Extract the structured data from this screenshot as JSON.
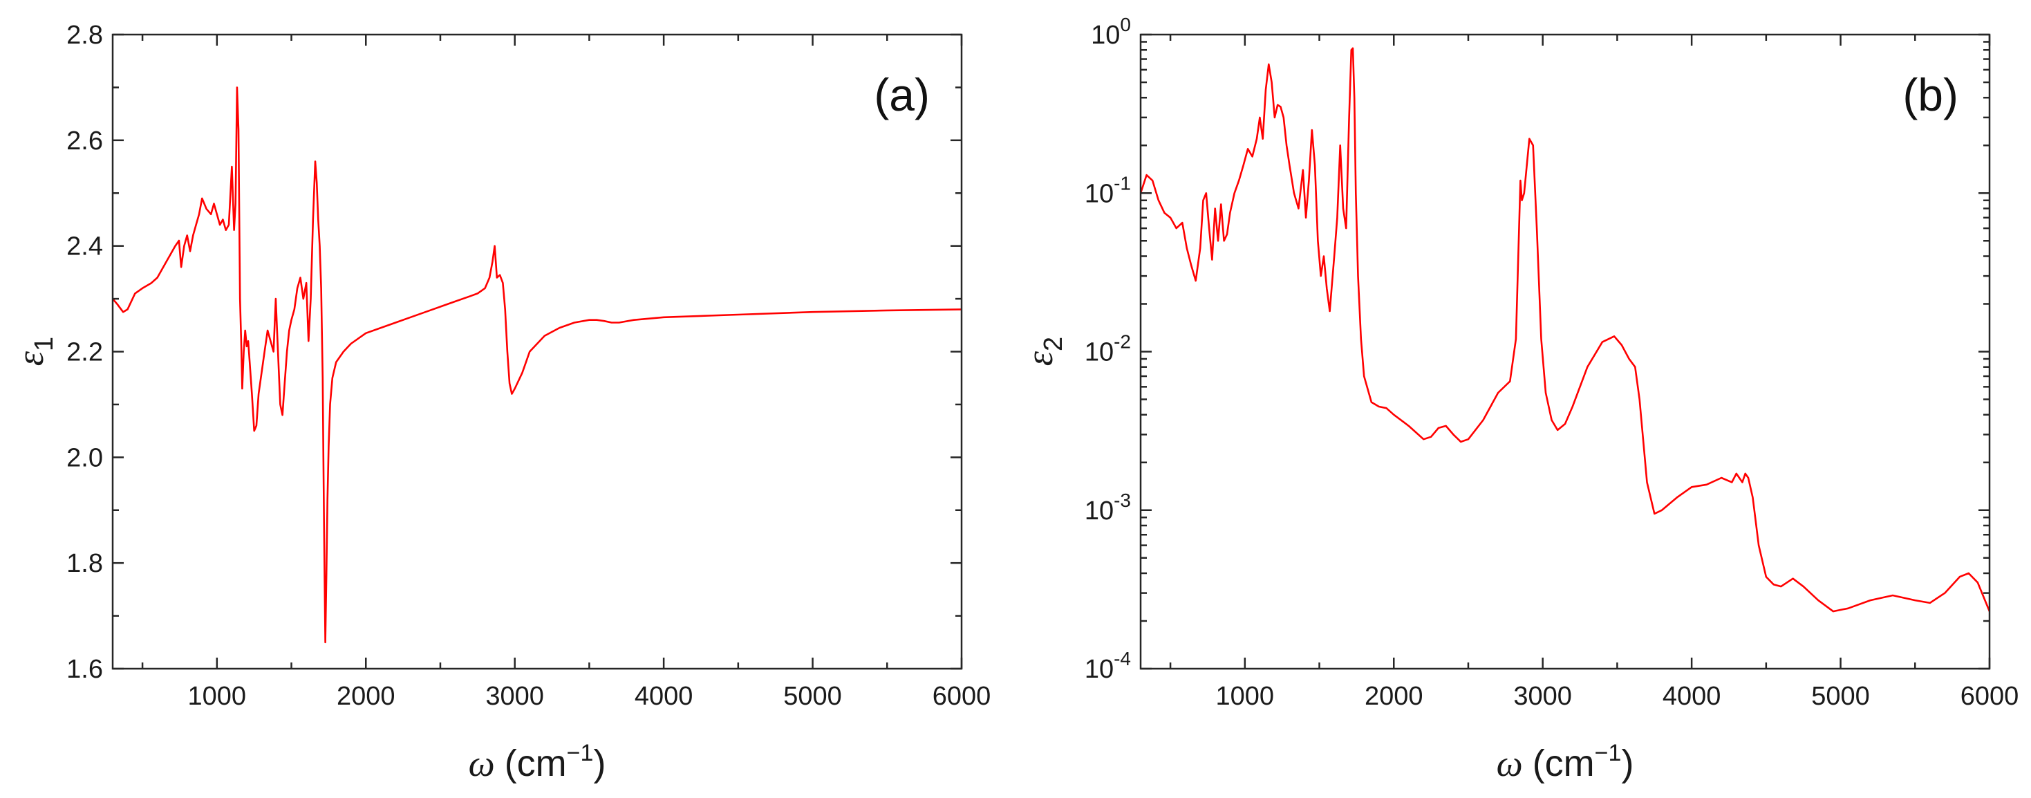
{
  "colors": {
    "series": "#ff0000",
    "axes": "#262626"
  },
  "chart_data": [
    {
      "type": "line",
      "panel_label": "(a)",
      "xlabel": {
        "symbol": "ω",
        "unit": "(cm",
        "exp": "−1",
        "close": ")"
      },
      "ylabel": {
        "symbol": "ε",
        "sub": "1"
      },
      "xlim": [
        300,
        6000
      ],
      "ylim": [
        1.6,
        2.8
      ],
      "yscale": "linear",
      "xticks": [
        1000,
        2000,
        3000,
        4000,
        5000,
        6000
      ],
      "xtick_labels": [
        "1000",
        "2000",
        "3000",
        "4000",
        "5000",
        "6000"
      ],
      "yticks": [
        1.6,
        1.8,
        2.0,
        2.2,
        2.4,
        2.6,
        2.8
      ],
      "ytick_labels": [
        "1.6",
        "1.8",
        "2.0",
        "2.2",
        "2.4",
        "2.6",
        "2.8"
      ],
      "grid": false,
      "legend": "none",
      "series": [
        {
          "x": [
            300,
            330,
            370,
            400,
            450,
            500,
            530,
            560,
            600,
            640,
            680,
            720,
            745,
            760,
            780,
            800,
            820,
            840,
            860,
            880,
            900,
            930,
            960,
            980,
            1000,
            1020,
            1040,
            1060,
            1080,
            1100,
            1115,
            1125,
            1135,
            1145,
            1155,
            1163,
            1170,
            1180,
            1190,
            1200,
            1210,
            1220,
            1235,
            1250,
            1265,
            1280,
            1300,
            1320,
            1340,
            1360,
            1380,
            1395,
            1410,
            1425,
            1440,
            1455,
            1470,
            1485,
            1500,
            1520,
            1540,
            1560,
            1580,
            1600,
            1615,
            1630,
            1645,
            1660,
            1670,
            1680,
            1690,
            1700,
            1710,
            1715,
            1720,
            1728,
            1735,
            1742,
            1750,
            1760,
            1775,
            1800,
            1850,
            1900,
            2000,
            2100,
            2200,
            2300,
            2400,
            2500,
            2600,
            2700,
            2750,
            2800,
            2830,
            2850,
            2865,
            2880,
            2900,
            2920,
            2935,
            2950,
            2965,
            2980,
            3000,
            3050,
            3100,
            3200,
            3300,
            3400,
            3500,
            3550,
            3600,
            3650,
            3700,
            3800,
            4000,
            4500,
            5000,
            5500,
            6000
          ],
          "y": [
            2.3,
            2.29,
            2.275,
            2.28,
            2.31,
            2.32,
            2.325,
            2.33,
            2.34,
            2.36,
            2.38,
            2.4,
            2.41,
            2.36,
            2.4,
            2.42,
            2.39,
            2.42,
            2.44,
            2.46,
            2.49,
            2.47,
            2.46,
            2.48,
            2.46,
            2.44,
            2.45,
            2.43,
            2.44,
            2.55,
            2.43,
            2.48,
            2.7,
            2.62,
            2.3,
            2.22,
            2.13,
            2.2,
            2.24,
            2.21,
            2.22,
            2.18,
            2.12,
            2.05,
            2.06,
            2.12,
            2.16,
            2.2,
            2.24,
            2.22,
            2.2,
            2.3,
            2.2,
            2.1,
            2.08,
            2.14,
            2.2,
            2.24,
            2.26,
            2.28,
            2.32,
            2.34,
            2.3,
            2.33,
            2.22,
            2.3,
            2.45,
            2.56,
            2.52,
            2.45,
            2.4,
            2.32,
            2.15,
            2.0,
            1.85,
            1.65,
            1.78,
            1.92,
            2.02,
            2.1,
            2.15,
            2.18,
            2.2,
            2.215,
            2.235,
            2.245,
            2.255,
            2.265,
            2.275,
            2.285,
            2.295,
            2.305,
            2.31,
            2.32,
            2.34,
            2.37,
            2.4,
            2.34,
            2.345,
            2.33,
            2.28,
            2.2,
            2.14,
            2.12,
            2.13,
            2.16,
            2.2,
            2.23,
            2.245,
            2.255,
            2.26,
            2.26,
            2.258,
            2.255,
            2.255,
            2.26,
            2.265,
            2.27,
            2.275,
            2.278,
            2.28
          ]
        }
      ]
    },
    {
      "type": "line",
      "panel_label": "(b)",
      "xlabel": {
        "symbol": "ω",
        "unit": "(cm",
        "exp": "−1",
        "close": ")"
      },
      "ylabel": {
        "symbol": "ε",
        "sub": "2"
      },
      "xlim": [
        300,
        6000
      ],
      "ylim": [
        0.0001,
        1
      ],
      "yscale": "log",
      "xticks": [
        1000,
        2000,
        3000,
        4000,
        5000,
        6000
      ],
      "xtick_labels": [
        "1000",
        "2000",
        "3000",
        "4000",
        "5000",
        "6000"
      ],
      "yticks": [
        0.0001,
        0.001,
        0.01,
        0.1,
        1
      ],
      "ytick_labels": [
        {
          "base": "10",
          "exp": "-4"
        },
        {
          "base": "10",
          "exp": "-3"
        },
        {
          "base": "10",
          "exp": "-2"
        },
        {
          "base": "10",
          "exp": "-1"
        },
        {
          "base": "10",
          "exp": "0"
        }
      ],
      "grid": false,
      "legend": "none",
      "series": [
        {
          "x": [
            300,
            340,
            380,
            420,
            460,
            500,
            540,
            580,
            610,
            640,
            670,
            700,
            720,
            740,
            760,
            780,
            800,
            820,
            840,
            860,
            880,
            900,
            930,
            960,
            990,
            1020,
            1050,
            1080,
            1100,
            1120,
            1140,
            1160,
            1180,
            1200,
            1220,
            1240,
            1260,
            1280,
            1300,
            1330,
            1360,
            1390,
            1410,
            1430,
            1450,
            1470,
            1490,
            1510,
            1530,
            1550,
            1570,
            1600,
            1620,
            1640,
            1660,
            1680,
            1700,
            1715,
            1725,
            1735,
            1745,
            1760,
            1780,
            1800,
            1850,
            1900,
            1950,
            2000,
            2100,
            2200,
            2250,
            2300,
            2350,
            2400,
            2450,
            2500,
            2600,
            2700,
            2780,
            2820,
            2850,
            2860,
            2875,
            2890,
            2910,
            2935,
            2960,
            2990,
            3020,
            3060,
            3100,
            3150,
            3200,
            3300,
            3400,
            3480,
            3530,
            3580,
            3620,
            3650,
            3700,
            3750,
            3800,
            3900,
            4000,
            4100,
            4200,
            4270,
            4300,
            4340,
            4360,
            4380,
            4410,
            4450,
            4500,
            4550,
            4600,
            4680,
            4750,
            4850,
            4950,
            5050,
            5200,
            5350,
            5500,
            5600,
            5700,
            5800,
            5860,
            5920,
            6000
          ],
          "y": [
            0.1,
            0.13,
            0.12,
            0.09,
            0.075,
            0.07,
            0.06,
            0.065,
            0.045,
            0.035,
            0.028,
            0.045,
            0.09,
            0.1,
            0.06,
            0.038,
            0.08,
            0.05,
            0.085,
            0.05,
            0.055,
            0.075,
            0.1,
            0.12,
            0.15,
            0.19,
            0.17,
            0.22,
            0.3,
            0.22,
            0.45,
            0.65,
            0.5,
            0.3,
            0.36,
            0.35,
            0.3,
            0.2,
            0.15,
            0.1,
            0.08,
            0.14,
            0.07,
            0.12,
            0.25,
            0.15,
            0.05,
            0.03,
            0.04,
            0.025,
            0.018,
            0.04,
            0.07,
            0.2,
            0.08,
            0.06,
            0.3,
            0.8,
            0.82,
            0.4,
            0.1,
            0.03,
            0.012,
            0.007,
            0.0048,
            0.0045,
            0.0044,
            0.004,
            0.0034,
            0.0028,
            0.0029,
            0.0033,
            0.0034,
            0.003,
            0.0027,
            0.0028,
            0.0037,
            0.0055,
            0.0065,
            0.012,
            0.12,
            0.09,
            0.1,
            0.14,
            0.22,
            0.2,
            0.06,
            0.012,
            0.0055,
            0.0037,
            0.0032,
            0.0035,
            0.0045,
            0.008,
            0.0115,
            0.0125,
            0.011,
            0.009,
            0.008,
            0.005,
            0.0015,
            0.00095,
            0.001,
            0.0012,
            0.0014,
            0.00145,
            0.0016,
            0.0015,
            0.0017,
            0.0015,
            0.0017,
            0.0016,
            0.0012,
            0.0006,
            0.00038,
            0.00034,
            0.00033,
            0.00037,
            0.00033,
            0.00027,
            0.00023,
            0.00024,
            0.00027,
            0.00029,
            0.00027,
            0.00026,
            0.0003,
            0.00038,
            0.0004,
            0.00035,
            0.00023
          ]
        }
      ]
    }
  ]
}
